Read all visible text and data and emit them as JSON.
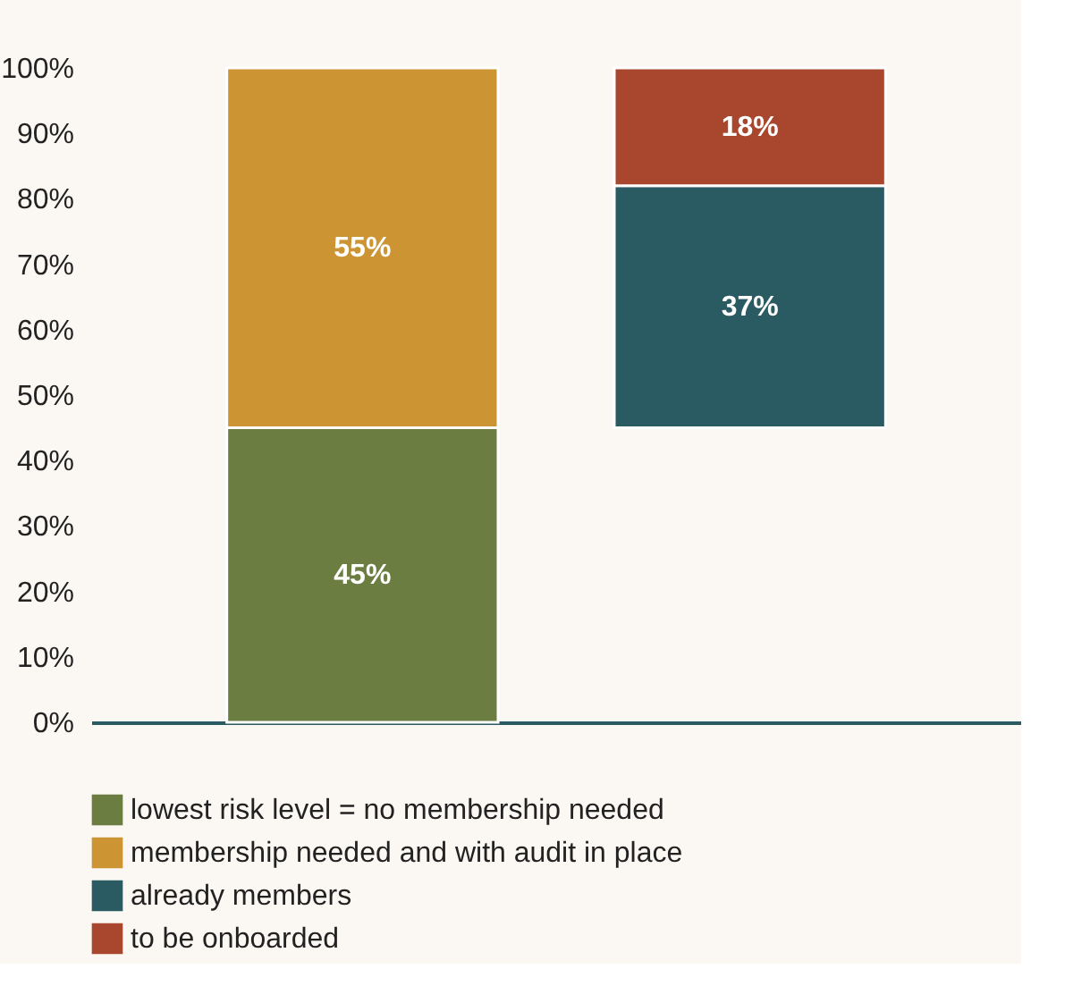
{
  "chart_data": {
    "type": "bar",
    "categories": [
      null,
      null
    ],
    "series": [
      {
        "name": "lowest risk level = no membership needed",
        "color": "#6b7d40",
        "values": [
          45,
          null
        ],
        "base": [
          0,
          null
        ],
        "value_labels": [
          "45%",
          null
        ]
      },
      {
        "name": "membership needed and with audit in place",
        "color": "#cc9433",
        "values": [
          55,
          null
        ],
        "base": [
          45,
          null
        ],
        "value_labels": [
          "55%",
          null
        ]
      },
      {
        "name": "already members",
        "color": "#2a5a62",
        "values": [
          null,
          37
        ],
        "base": [
          null,
          45
        ],
        "value_labels": [
          null,
          "37%"
        ]
      },
      {
        "name": "to be onboarded",
        "color": "#a8472e",
        "values": [
          null,
          18
        ],
        "base": [
          null,
          82
        ],
        "value_labels": [
          null,
          "18%"
        ]
      }
    ],
    "ylim": [
      0,
      100
    ],
    "yticks": [
      {
        "value": 0,
        "label": "0%"
      },
      {
        "value": 10,
        "label": "10%"
      },
      {
        "value": 20,
        "label": "20%"
      },
      {
        "value": 30,
        "label": "30%"
      },
      {
        "value": 40,
        "label": "40%"
      },
      {
        "value": 50,
        "label": "50%"
      },
      {
        "value": 60,
        "label": "60%"
      },
      {
        "value": 70,
        "label": "70%"
      },
      {
        "value": 80,
        "label": "80%"
      },
      {
        "value": 90,
        "label": "90%"
      },
      {
        "value": 100,
        "label": "100%"
      }
    ],
    "tick_labels": "y",
    "grid": false,
    "legend": "bottom"
  }
}
